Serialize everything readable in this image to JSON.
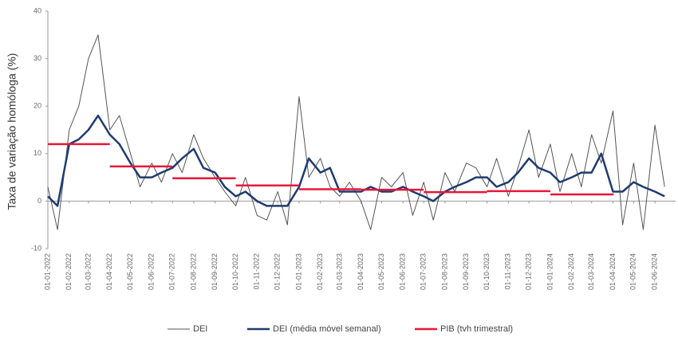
{
  "chart_data": {
    "type": "line",
    "y_label": "Taxa de variação homóloga (%)",
    "x": [
      "01-01-2022",
      "15-01-2022",
      "01-02-2022",
      "15-02-2022",
      "01-03-2022",
      "15-03-2022",
      "01-04-2022",
      "15-04-2022",
      "01-05-2022",
      "15-05-2022",
      "01-06-2022",
      "15-06-2022",
      "01-07-2022",
      "15-07-2022",
      "01-08-2022",
      "15-08-2022",
      "01-09-2022",
      "15-09-2022",
      "01-10-2022",
      "15-10-2022",
      "01-11-2022",
      "15-11-2022",
      "01-12-2022",
      "15-12-2022",
      "01-01-2023",
      "15-01-2023",
      "01-02-2023",
      "15-02-2023",
      "01-03-2023",
      "15-03-2023",
      "01-04-2023",
      "15-04-2023",
      "01-05-2023",
      "15-05-2023",
      "01-06-2023",
      "15-06-2023",
      "01-07-2023",
      "15-07-2023",
      "01-08-2023",
      "15-08-2023",
      "01-09-2023",
      "15-09-2023",
      "01-10-2023",
      "15-10-2023",
      "01-11-2023",
      "15-11-2023",
      "01-12-2023",
      "15-12-2023",
      "01-01-2024",
      "15-01-2024",
      "01-02-2024",
      "15-02-2024",
      "01-03-2024",
      "15-03-2024",
      "01-04-2024",
      "15-04-2024",
      "01-05-2024",
      "15-05-2024",
      "01-06-2024",
      "15-06-2024"
    ],
    "series": [
      {
        "name": "DEI",
        "color": "#555555",
        "width": 1,
        "values": [
          3,
          -6,
          15,
          20,
          30,
          35,
          15,
          18,
          10,
          3,
          8,
          4,
          10,
          6,
          14,
          9,
          5,
          2,
          -1,
          5,
          -3,
          -4,
          2,
          -5,
          22,
          5,
          9,
          3,
          1,
          4,
          0,
          -6,
          5,
          3,
          6,
          -3,
          4,
          -4,
          6,
          2,
          8,
          7,
          3,
          9,
          1,
          7,
          15,
          5,
          12,
          2,
          10,
          3,
          14,
          8,
          19,
          -5,
          8,
          -6,
          16,
          3
        ]
      },
      {
        "name": "DEI (média móvel semanal)",
        "color": "#1f3b6e",
        "width": 2.5,
        "values": [
          1,
          -1,
          12,
          13,
          15,
          18,
          14,
          12,
          8,
          5,
          5,
          6,
          7,
          9,
          11,
          7,
          6,
          3,
          1,
          2,
          0,
          -1,
          -1,
          -1,
          3,
          9,
          6,
          7,
          2,
          2,
          2,
          3,
          2,
          2,
          3,
          2,
          1,
          0,
          2,
          3,
          4,
          5,
          5,
          3,
          4,
          6,
          9,
          7,
          6,
          4,
          5,
          6,
          6,
          10,
          2,
          2,
          4,
          3,
          2,
          1
        ]
      }
    ],
    "step_series": {
      "name": "PIB (tvh trimestral)",
      "color": "#e8173a",
      "x": [
        "01-01-2022",
        "01-04-2022",
        "01-07-2022",
        "01-10-2022",
        "01-01-2023",
        "01-04-2023",
        "01-07-2023",
        "01-10-2023",
        "01-01-2024"
      ],
      "values": [
        12,
        7.3,
        4.8,
        3.3,
        2.5,
        2.4,
        1.9,
        2.1,
        1.4
      ]
    },
    "xlim": [
      "01-01-2022",
      "01-07-2024"
    ],
    "xticks": [
      "01-01-2022",
      "01-02-2022",
      "01-03-2022",
      "01-04-2022",
      "01-05-2022",
      "01-06-2022",
      "01-07-2022",
      "01-08-2022",
      "01-09-2022",
      "01-10-2022",
      "01-11-2022",
      "01-12-2022",
      "01-01-2023",
      "01-02-2023",
      "01-03-2023",
      "01-04-2023",
      "01-05-2023",
      "01-06-2023",
      "01-07-2023",
      "01-08-2023",
      "01-09-2023",
      "01-10-2023",
      "01-11-2023",
      "01-12-2023",
      "01-01-2024",
      "01-02-2024",
      "01-03-2024",
      "01-04-2024",
      "01-05-2024",
      "01-06-2024"
    ],
    "ylim": [
      -10,
      40
    ],
    "yticks": [
      -10,
      0,
      10,
      20,
      30,
      40
    ]
  }
}
